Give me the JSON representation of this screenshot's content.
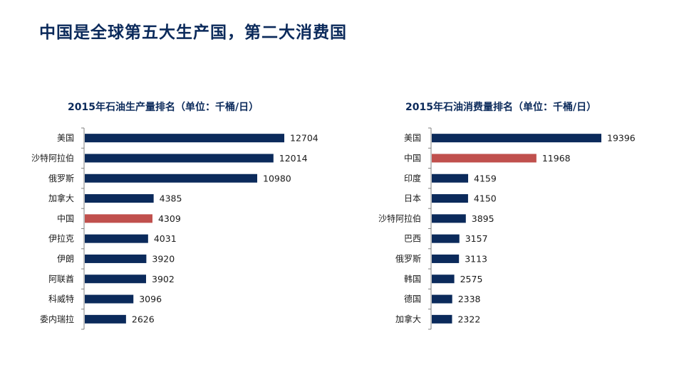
{
  "slide": {
    "title": "中国是全球第五大生产国，第二大消费国"
  },
  "chart_data": [
    {
      "type": "bar",
      "orientation": "horizontal",
      "title": "2015年石油生产量排名（单位：千桶/日）",
      "categories": [
        "美国",
        "沙特阿拉伯",
        "俄罗斯",
        "加拿大",
        "中国",
        "伊拉克",
        "伊朗",
        "阿联酋",
        "科威特",
        "委内瑞拉"
      ],
      "values": [
        12704,
        12014,
        10980,
        4385,
        4309,
        4031,
        3920,
        3902,
        3096,
        2626
      ],
      "highlight": "中国",
      "bar_color": "#0b2a5b",
      "highlight_color": "#c0504d",
      "grid": false
    },
    {
      "type": "bar",
      "orientation": "horizontal",
      "title": "2015年石油消费量排名（单位：千桶/日）",
      "categories": [
        "美国",
        "中国",
        "印度",
        "日本",
        "沙特阿拉伯",
        "巴西",
        "俄罗斯",
        "韩国",
        "德国",
        "加拿大"
      ],
      "values": [
        19396,
        11968,
        4159,
        4150,
        3895,
        3157,
        3113,
        2575,
        2338,
        2322
      ],
      "highlight": "中国",
      "bar_color": "#0b2a5b",
      "highlight_color": "#c0504d",
      "grid": false
    }
  ]
}
